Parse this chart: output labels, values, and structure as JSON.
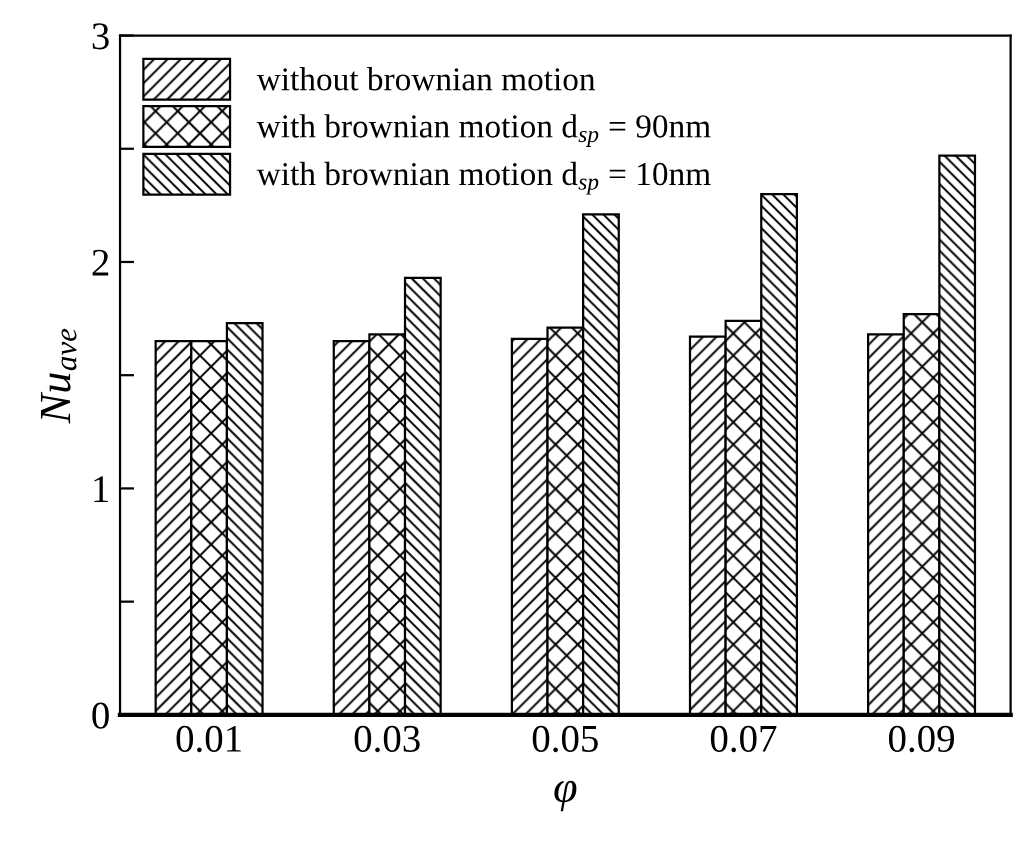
{
  "chart_data": {
    "type": "bar",
    "xlabel": "φ",
    "ylabel": "Nu$_{ave}$",
    "categories": [
      "0.01",
      "0.03",
      "0.05",
      "0.07",
      "0.09"
    ],
    "series": [
      {
        "name": "without brownian motion",
        "values": [
          1.65,
          1.65,
          1.66,
          1.67,
          1.68
        ]
      },
      {
        "name": "with brownian motion d$_{sp}$ = 90nm",
        "values": [
          1.65,
          1.68,
          1.71,
          1.74,
          1.77
        ]
      },
      {
        "name": "with brownian motion d$_{sp}$ = 10nm",
        "values": [
          1.73,
          1.93,
          2.21,
          2.3,
          2.47
        ]
      }
    ],
    "ylim": [
      0,
      3
    ],
    "yticks": [
      0,
      {
        "value": 0.5,
        "label": null
      },
      1,
      {
        "value": 1.5,
        "label": null
      },
      2,
      {
        "value": 2.5,
        "label": null
      },
      3
    ],
    "grid": false,
    "legend": "top left"
  }
}
